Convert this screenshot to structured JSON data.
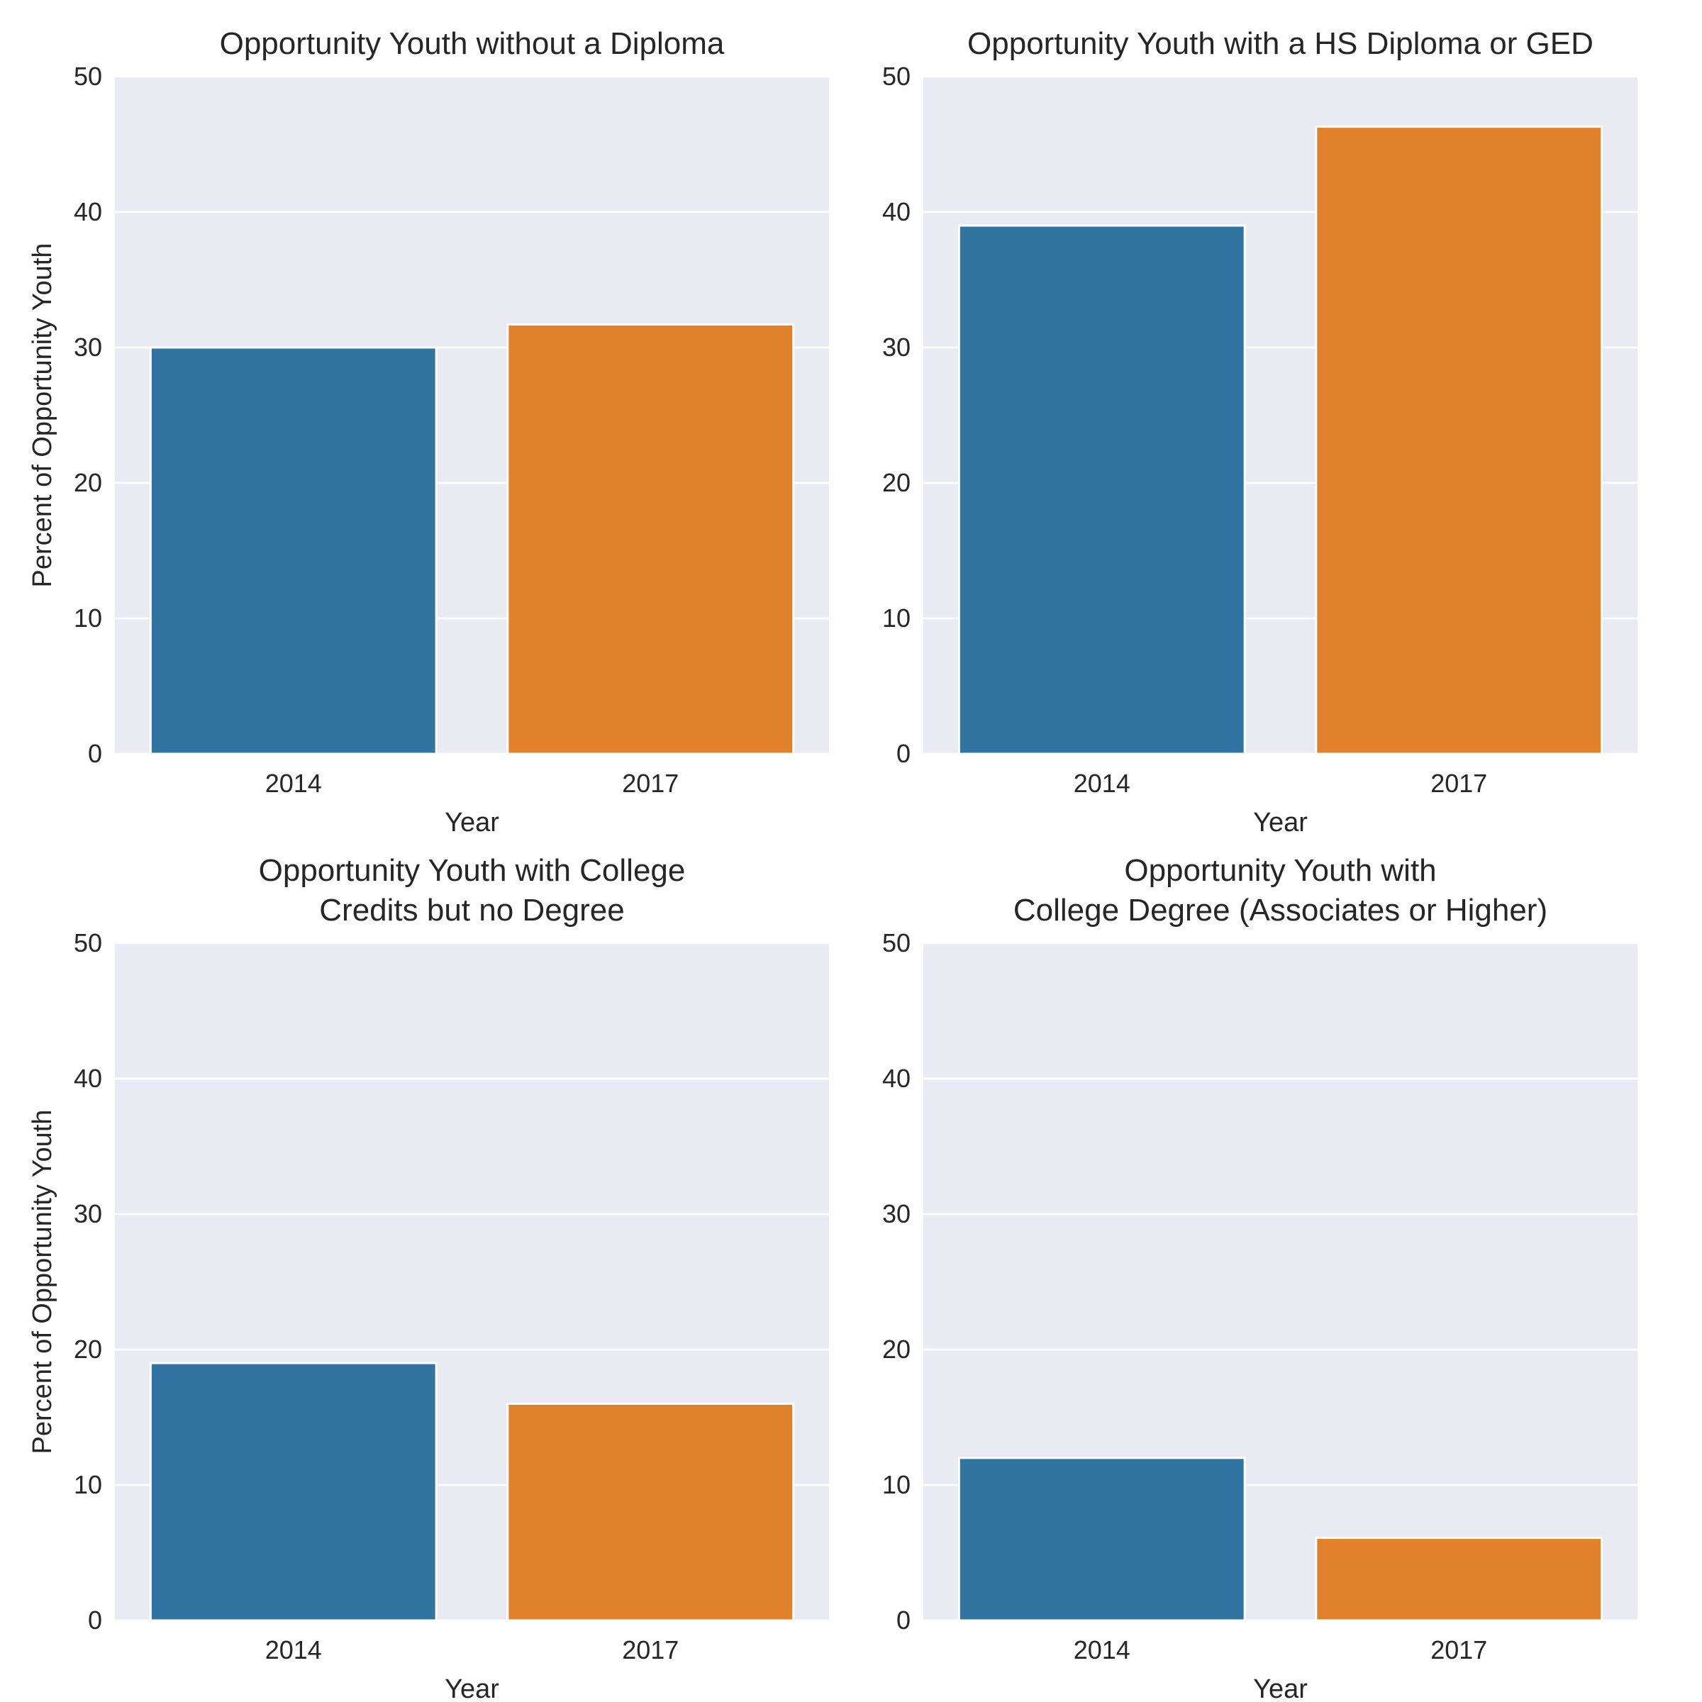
{
  "chart_data": [
    {
      "type": "bar",
      "title": [
        "Opportunity Youth without a Diploma"
      ],
      "xlabel": "Year",
      "ylabel": "Percent of Opportunity Youth",
      "categories": [
        "2014",
        "2017"
      ],
      "values": [
        30.0,
        31.7
      ],
      "colors": [
        "#3274a1",
        "#e1812c"
      ],
      "ylim": [
        0,
        50
      ],
      "yticks": [
        0,
        10,
        20,
        30,
        40,
        50
      ],
      "grid": true
    },
    {
      "type": "bar",
      "title": [
        "Opportunity Youth with a HS Diploma or GED"
      ],
      "xlabel": "Year",
      "ylabel": "",
      "categories": [
        "2014",
        "2017"
      ],
      "values": [
        39.0,
        46.3
      ],
      "colors": [
        "#3274a1",
        "#e1812c"
      ],
      "ylim": [
        0,
        50
      ],
      "yticks": [
        0,
        10,
        20,
        30,
        40,
        50
      ],
      "grid": true
    },
    {
      "type": "bar",
      "title": [
        "Opportunity Youth with College",
        "Credits but no Degree"
      ],
      "xlabel": "Year",
      "ylabel": "Percent of Opportunity Youth",
      "categories": [
        "2014",
        "2017"
      ],
      "values": [
        19.0,
        16.0
      ],
      "colors": [
        "#3274a1",
        "#e1812c"
      ],
      "ylim": [
        0,
        50
      ],
      "yticks": [
        0,
        10,
        20,
        30,
        40,
        50
      ],
      "grid": true
    },
    {
      "type": "bar",
      "title": [
        "Opportunity Youth with",
        "College Degree (Associates or Higher)"
      ],
      "xlabel": "Year",
      "ylabel": "",
      "categories": [
        "2014",
        "2017"
      ],
      "values": [
        12.0,
        6.1
      ],
      "colors": [
        "#3274a1",
        "#e1812c"
      ],
      "ylim": [
        0,
        50
      ],
      "yticks": [
        0,
        10,
        20,
        30,
        40,
        50
      ],
      "grid": true
    }
  ],
  "style": {
    "plot_background": "#eaeaf2",
    "grid_color": "#ffffff",
    "text_color": "#262626"
  }
}
